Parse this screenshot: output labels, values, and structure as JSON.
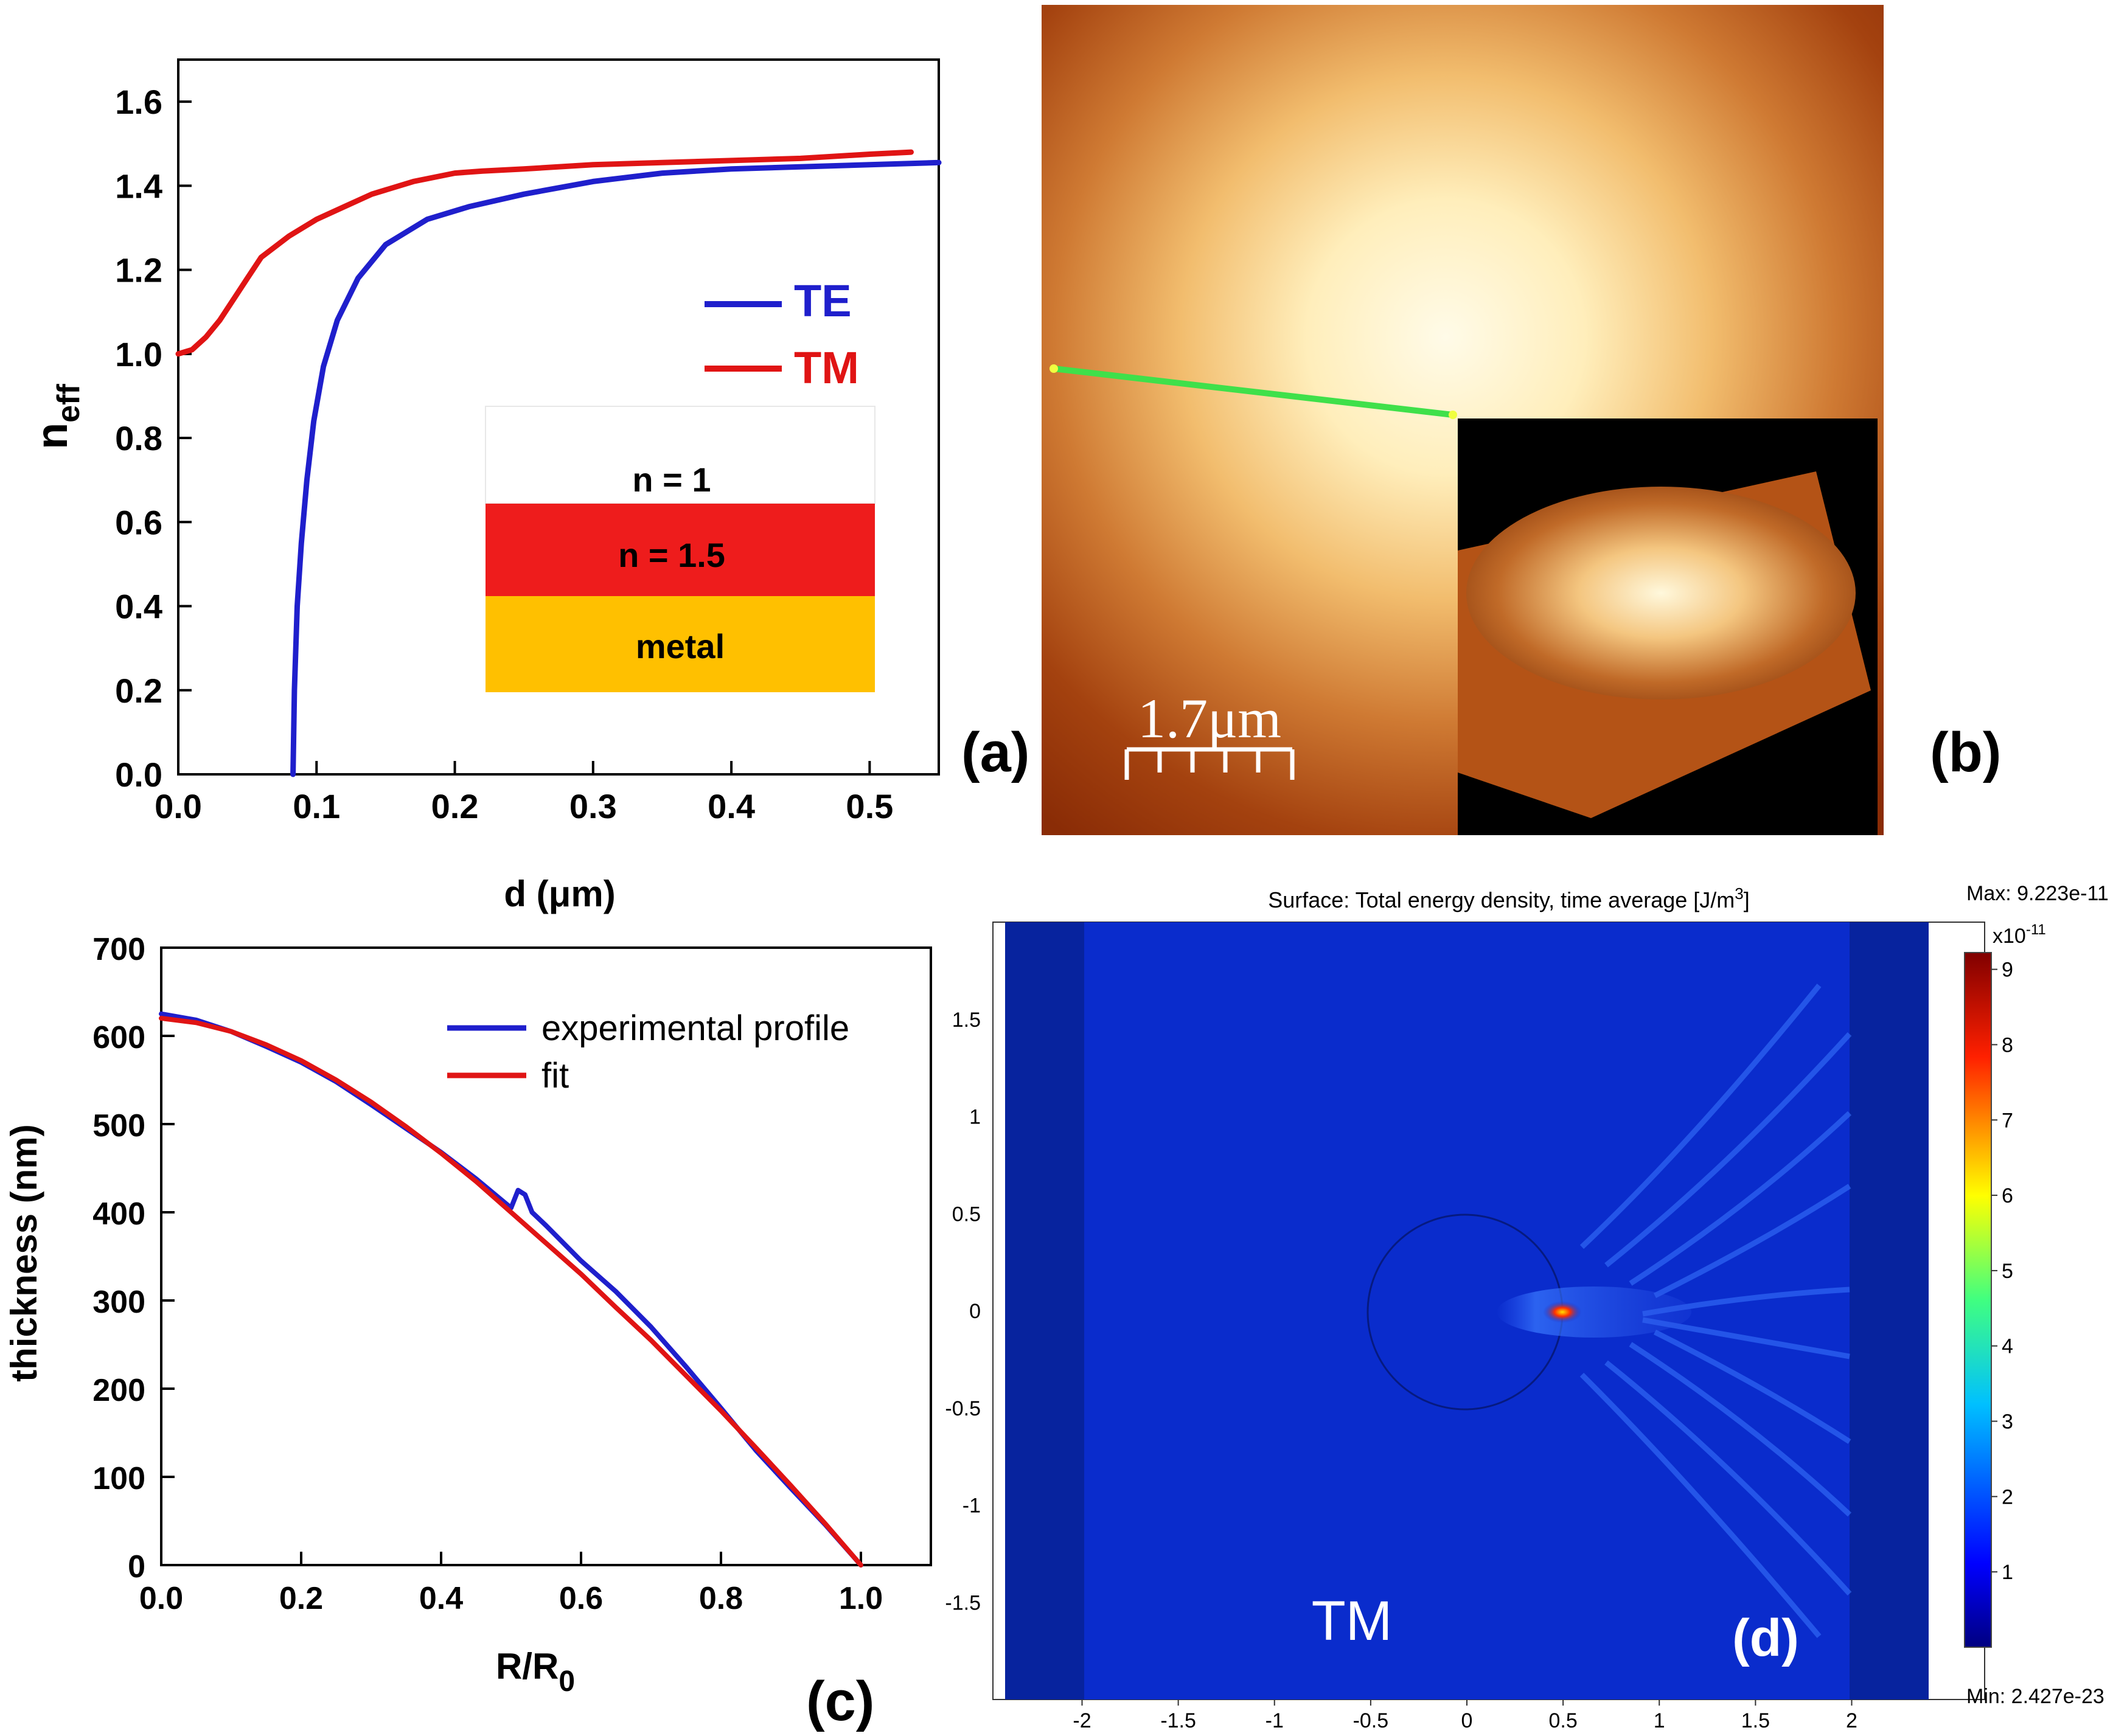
{
  "panel_a": {
    "chart_data": {
      "type": "line",
      "panel_label": "(a)",
      "xlabel": "d (μm)",
      "ylabel_main": "n",
      "ylabel_sub": "eff",
      "xlim": [
        0.0,
        0.55
      ],
      "ylim": [
        0.0,
        1.7
      ],
      "xticks": [
        "0.0",
        "0.1",
        "0.2",
        "0.3",
        "0.4",
        "0.5"
      ],
      "xtick_values": [
        0.0,
        0.1,
        0.2,
        0.3,
        0.4,
        0.5
      ],
      "yticks": [
        "0.0",
        "0.2",
        "0.4",
        "0.6",
        "0.8",
        "1.0",
        "1.2",
        "1.4",
        "1.6"
      ],
      "ytick_values": [
        0.0,
        0.2,
        0.4,
        0.6,
        0.8,
        1.0,
        1.2,
        1.4,
        1.6
      ],
      "series": [
        {
          "name": "TE",
          "color": "#1f1fcc",
          "x": [
            0.083,
            0.084,
            0.086,
            0.089,
            0.093,
            0.098,
            0.105,
            0.115,
            0.13,
            0.15,
            0.18,
            0.21,
            0.25,
            0.3,
            0.35,
            0.4,
            0.45,
            0.5,
            0.55
          ],
          "y": [
            0.0,
            0.2,
            0.4,
            0.55,
            0.7,
            0.84,
            0.97,
            1.08,
            1.18,
            1.26,
            1.32,
            1.35,
            1.38,
            1.41,
            1.43,
            1.44,
            1.445,
            1.45,
            1.455
          ]
        },
        {
          "name": "TM",
          "color": "#e01414",
          "x": [
            0.0,
            0.01,
            0.02,
            0.03,
            0.04,
            0.05,
            0.06,
            0.08,
            0.1,
            0.12,
            0.14,
            0.17,
            0.2,
            0.22,
            0.25,
            0.3,
            0.35,
            0.4,
            0.45,
            0.5,
            0.53
          ],
          "y": [
            1.0,
            1.01,
            1.04,
            1.08,
            1.13,
            1.18,
            1.23,
            1.28,
            1.32,
            1.35,
            1.38,
            1.41,
            1.43,
            1.435,
            1.44,
            1.45,
            1.455,
            1.46,
            1.465,
            1.475,
            1.48
          ]
        }
      ]
    },
    "inset": {
      "layers": [
        {
          "label": "n = 1",
          "color": "#ffffff"
        },
        {
          "label": "n = 1.5",
          "color": "#ee1c1c"
        },
        {
          "label": "metal",
          "color": "#ffc000"
        }
      ]
    }
  },
  "panel_b": {
    "panel_label": "(b)",
    "scale_bar": "1.7μm"
  },
  "panel_c": {
    "chart_data": {
      "type": "line",
      "panel_label": "(c)",
      "xlabel_main": "R/R",
      "xlabel_sub": "0",
      "ylabel": "thickness (nm)",
      "xlim": [
        0.0,
        1.1
      ],
      "ylim": [
        0,
        700
      ],
      "xticks": [
        "0.0",
        "0.2",
        "0.4",
        "0.6",
        "0.8",
        "1.0"
      ],
      "xtick_values": [
        0.0,
        0.2,
        0.4,
        0.6,
        0.8,
        1.0
      ],
      "yticks": [
        "0",
        "100",
        "200",
        "300",
        "400",
        "500",
        "600",
        "700"
      ],
      "ytick_values": [
        0,
        100,
        200,
        300,
        400,
        500,
        600,
        700
      ],
      "series": [
        {
          "name": "experimental profile",
          "color": "#1f1fcc",
          "x": [
            0.0,
            0.05,
            0.1,
            0.15,
            0.2,
            0.25,
            0.3,
            0.35,
            0.4,
            0.45,
            0.5,
            0.51,
            0.52,
            0.53,
            0.55,
            0.6,
            0.65,
            0.7,
            0.75,
            0.8,
            0.85,
            0.9,
            0.95,
            1.0
          ],
          "y": [
            625,
            618,
            605,
            588,
            570,
            548,
            522,
            495,
            468,
            438,
            405,
            425,
            420,
            400,
            385,
            345,
            310,
            270,
            225,
            178,
            130,
            87,
            45,
            0
          ]
        },
        {
          "name": "fit",
          "color": "#e01414",
          "x": [
            0.0,
            0.05,
            0.1,
            0.15,
            0.2,
            0.25,
            0.3,
            0.35,
            0.4,
            0.45,
            0.5,
            0.55,
            0.6,
            0.65,
            0.7,
            0.75,
            0.8,
            0.85,
            0.9,
            0.95,
            1.0
          ],
          "y": [
            620,
            615,
            605,
            590,
            572,
            550,
            525,
            497,
            467,
            435,
            400,
            365,
            330,
            292,
            255,
            215,
            175,
            133,
            90,
            46,
            0
          ]
        }
      ]
    }
  },
  "panel_d": {
    "title": "Surface: Total energy density, time average [J/m",
    "title_sup": "3",
    "title_end": "]",
    "max_label": "Max: 9.223e-11",
    "min_label": "Min: 2.427e-23",
    "colorbar_exp": "x10",
    "colorbar_exp_sup": "-11",
    "colorbar_ticks": [
      "9",
      "8",
      "7",
      "6",
      "5",
      "4",
      "3",
      "2",
      "1"
    ],
    "colorbar_tick_values": [
      9,
      8,
      7,
      6,
      5,
      4,
      3,
      2,
      1
    ],
    "colorbar_range": [
      0,
      9.223
    ],
    "xticks": [
      "-2",
      "-1.5",
      "-1",
      "-0.5",
      "0",
      "0.5",
      "1",
      "1.5",
      "2"
    ],
    "xtick_values": [
      -2,
      -1.5,
      -1,
      -0.5,
      0,
      0.5,
      1,
      1.5,
      2
    ],
    "yticks": [
      "1.5",
      "1",
      "0.5",
      "0",
      "-0.5",
      "-1",
      "-1.5"
    ],
    "ytick_values": [
      1.5,
      1,
      0.5,
      0,
      -0.5,
      -1,
      -1.5
    ],
    "xlim": [
      -2.4,
      2.4
    ],
    "ylim": [
      -2.0,
      2.0
    ],
    "mode_label": "TM",
    "panel_label": "(d)",
    "colors": {
      "background": "#0a2ccc",
      "pml": "#07239e",
      "hotspot": "#ff2a00"
    }
  }
}
